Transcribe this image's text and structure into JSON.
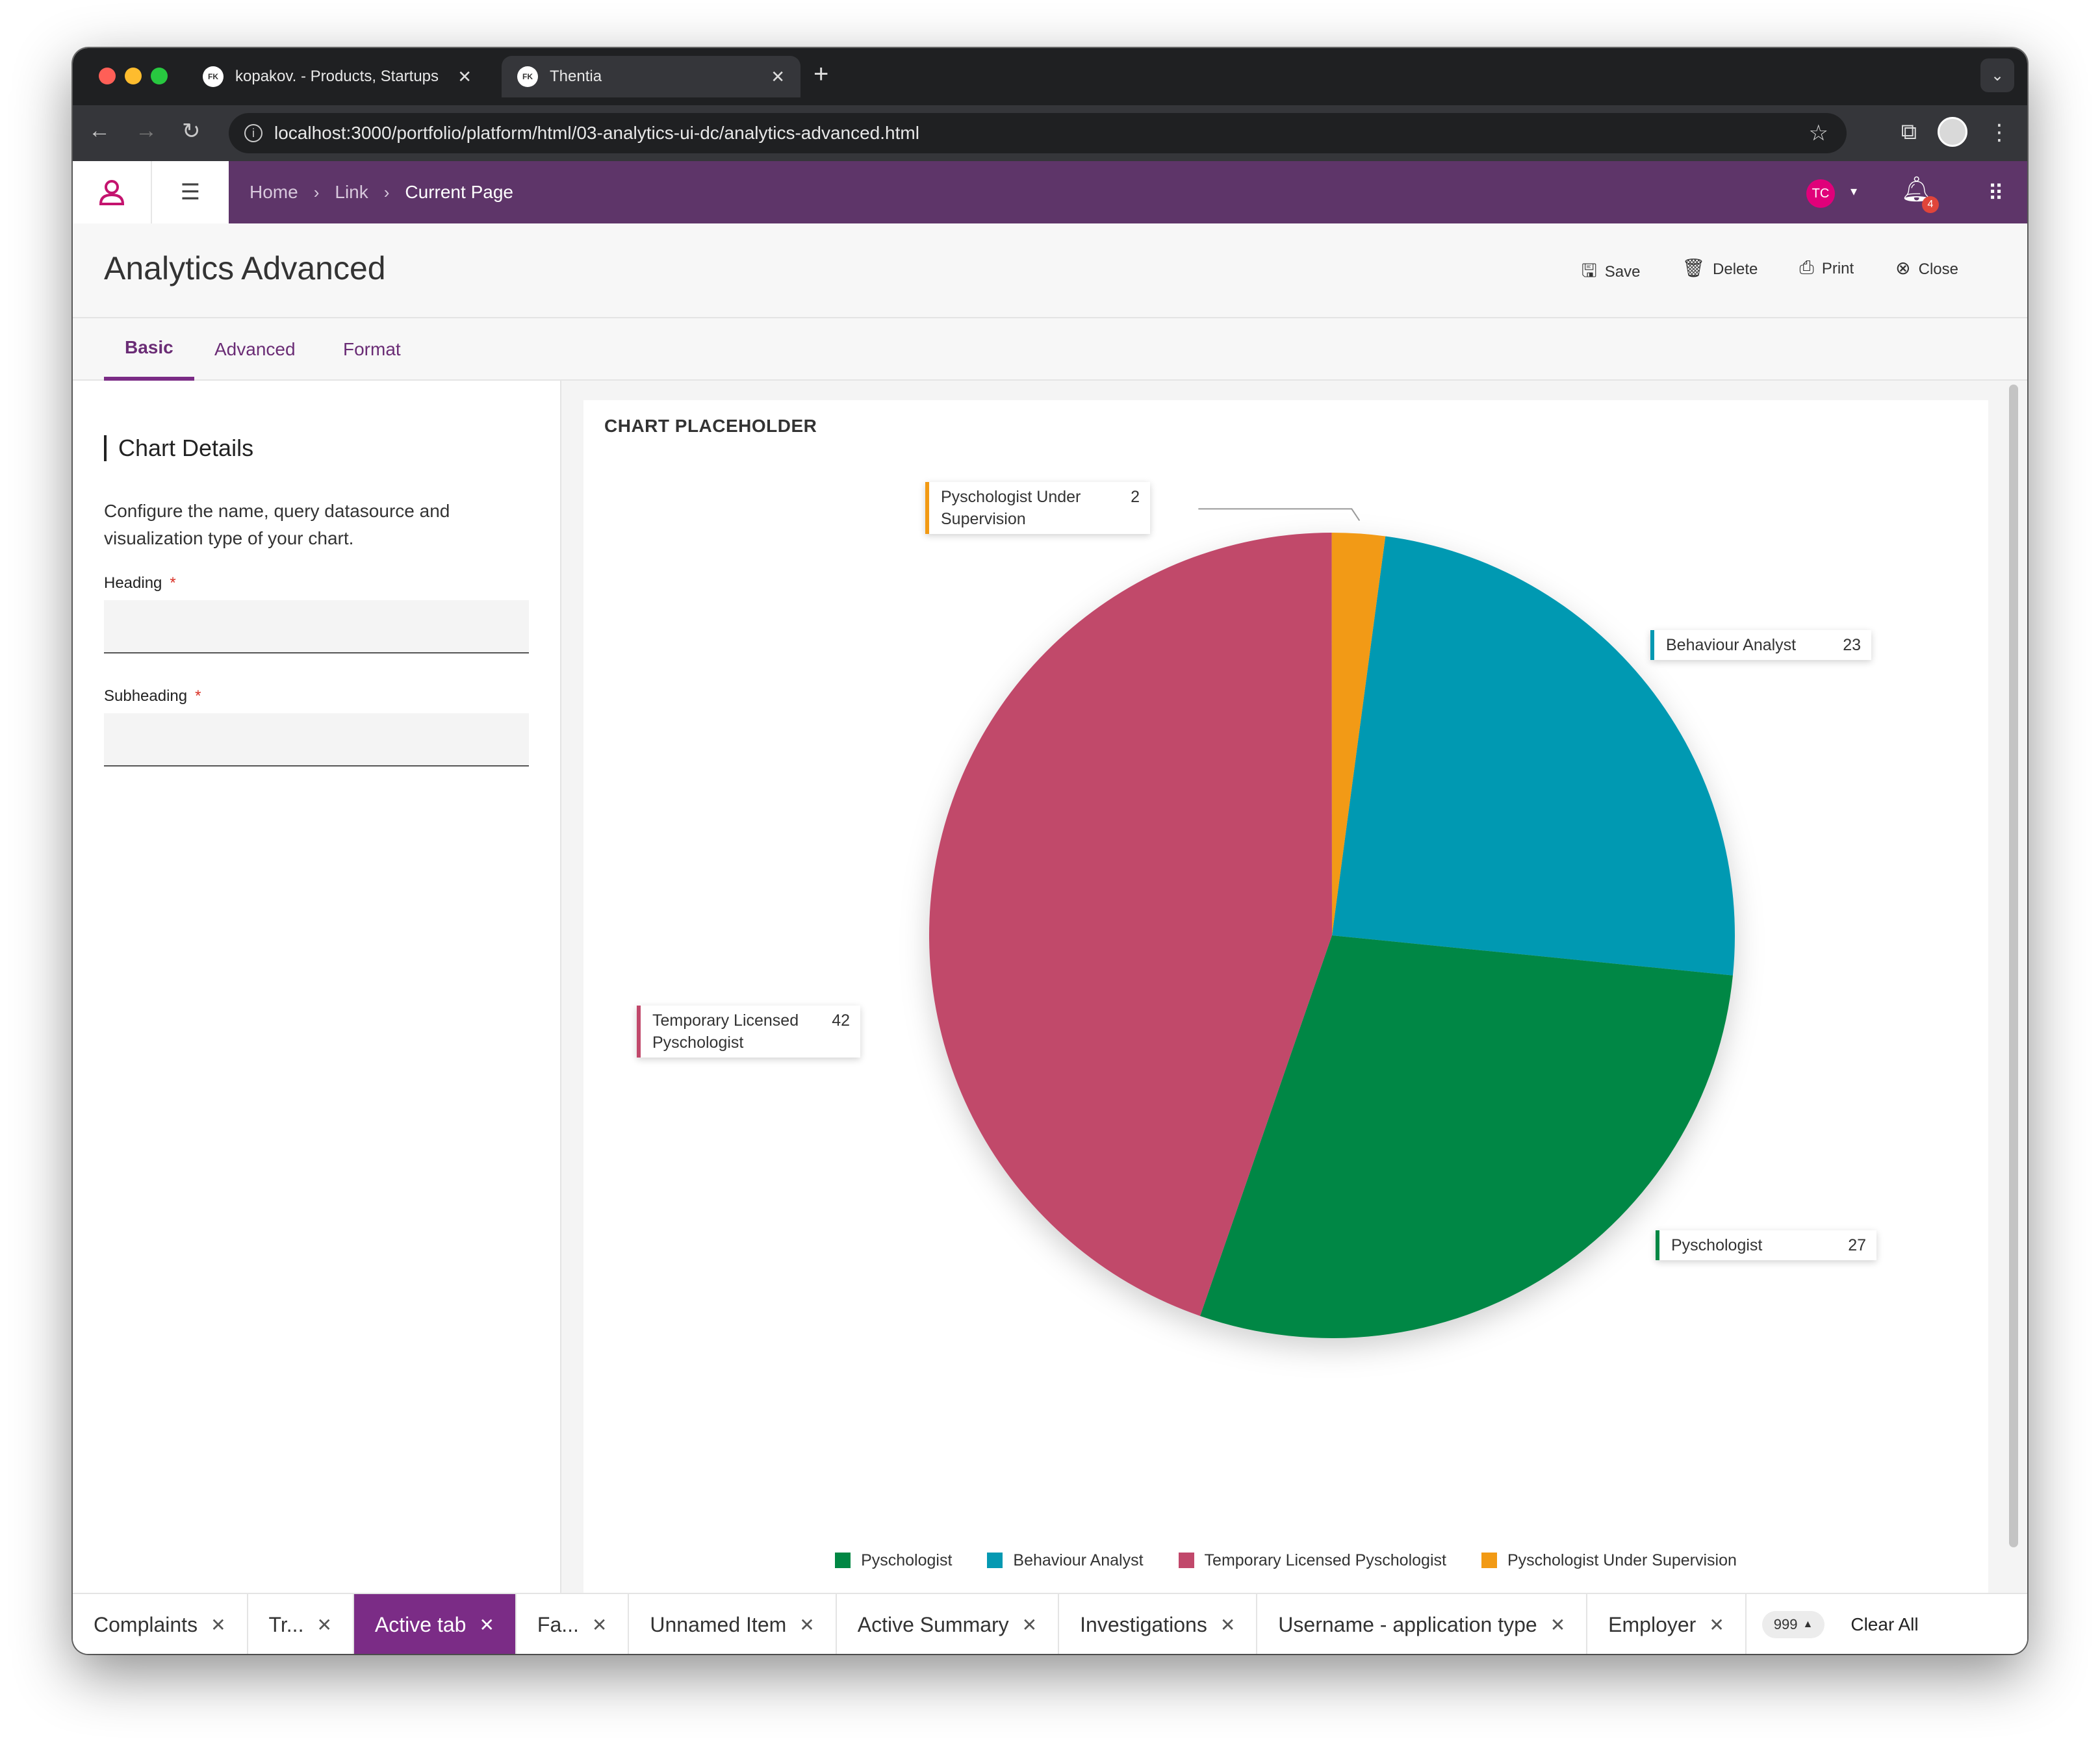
{
  "browser": {
    "tabs": [
      {
        "favicon": "FK",
        "title": "kopakov. - Products, Startups"
      },
      {
        "favicon": "FK",
        "title": "Thentia"
      }
    ],
    "url": "localhost:3000/portfolio/platform/html/03-analytics-ui-dc/analytics-advanced.html",
    "colors": {
      "close": "#ff5f57",
      "minimize": "#febc2e",
      "maximize": "#28c840"
    }
  },
  "header": {
    "breadcrumbs": [
      "Home",
      "Link",
      "Current Page"
    ],
    "avatar_initials": "TC",
    "notification_count": "4",
    "brand_color": "#5e3569"
  },
  "page": {
    "title": "Analytics Advanced",
    "actions": {
      "save": "Save",
      "delete": "Delete",
      "print": "Print",
      "close": "Close"
    },
    "tabs": [
      "Basic",
      "Advanced",
      "Format"
    ]
  },
  "panel": {
    "title": "Chart Details",
    "description": "Configure the name, query datasource and visualization type of your chart.",
    "heading_label": "Heading",
    "subheading_label": "Subheading",
    "required_mark": "*"
  },
  "chart_data": {
    "type": "pie",
    "title": "CHART PLACEHOLDER",
    "slices": [
      {
        "name": "Behaviour Analyst",
        "value": 23,
        "color": "#0599b2"
      },
      {
        "name": "Pyschologist",
        "value": 27,
        "color": "#018744"
      },
      {
        "name": "Temporary Licensed Pyschologist",
        "value": 42,
        "color": "#c1486b"
      },
      {
        "name": "Pyschologist Under Supervision",
        "value": 2,
        "color": "#f29a14"
      }
    ],
    "callout_labels": {
      "Behaviour Analyst": "Behaviour Analyst",
      "Pyschologist": "Pyschologist",
      "Temporary Licensed Pyschologist": "Temporary Licensed Pyschologist",
      "Pyschologist Under Supervision": "Pyschologist Under Supervision"
    },
    "legend": [
      "Pyschologist",
      "Behaviour Analyst",
      "Temporary Licensed Pyschologist",
      "Pyschologist Under Supervision"
    ],
    "legend_placement": "bottom"
  },
  "bottom_tabs": {
    "items": [
      {
        "label": "Complaints",
        "active": false
      },
      {
        "label": "Tr...",
        "active": false
      },
      {
        "label": "Active tab",
        "active": true
      },
      {
        "label": "Fa...",
        "active": false
      },
      {
        "label": "Unnamed Item",
        "active": false
      },
      {
        "label": "Active Summary",
        "active": false
      },
      {
        "label": "Investigations",
        "active": false
      },
      {
        "label": "Username - application type",
        "active": false
      },
      {
        "label": "Employer",
        "active": false
      }
    ],
    "count": "999",
    "clear_all": "Clear All"
  }
}
